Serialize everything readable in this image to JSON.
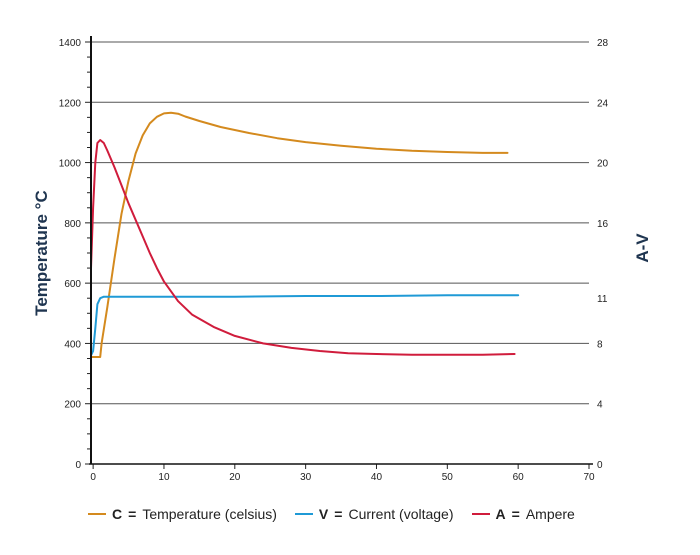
{
  "chart_data": {
    "type": "line",
    "ylabel": "Temperature °C",
    "y2label": "A-V",
    "xlim": [
      0,
      70
    ],
    "ylim": [
      0,
      1400
    ],
    "y2lim": [
      0,
      28
    ],
    "x_ticks": [
      0,
      10,
      20,
      30,
      40,
      50,
      60,
      70
    ],
    "y_ticks": [
      0,
      200,
      400,
      600,
      800,
      1000,
      1200,
      1400
    ],
    "y2_ticks": [
      0,
      4,
      8,
      11,
      16,
      20,
      24,
      28
    ],
    "grid": "horizontal",
    "legend_position": "bottom",
    "legend": [
      {
        "key": "C",
        "equals": "=",
        "label": "Temperature (celsius)",
        "color": "#d48a1e"
      },
      {
        "key": "V",
        "equals": "=",
        "label": "Current (voltage)",
        "color": "#1f9ad6"
      },
      {
        "key": "A",
        "equals": "=",
        "label": "Ampere",
        "color": "#d01c3c"
      }
    ],
    "series": [
      {
        "key": "C",
        "color": "#d48a1e",
        "axis": "left",
        "x": [
          -0.3,
          1.0,
          1.2,
          2,
          3,
          4,
          5,
          6,
          7,
          8,
          9,
          10,
          11,
          12,
          13,
          15,
          18,
          22,
          26,
          30,
          35,
          40,
          45,
          50,
          55,
          58.5
        ],
        "y": [
          355,
          355,
          400,
          520,
          680,
          830,
          940,
          1030,
          1090,
          1130,
          1152,
          1163,
          1165,
          1162,
          1153,
          1138,
          1118,
          1098,
          1081,
          1068,
          1056,
          1046,
          1039,
          1035,
          1032,
          1032
        ]
      },
      {
        "key": "V",
        "color": "#1f9ad6",
        "axis": "right",
        "x": [
          -0.3,
          0.0,
          0.3,
          0.6,
          1.0,
          1.5,
          3,
          10,
          20,
          30,
          40,
          50,
          60
        ],
        "y": [
          7.2,
          7.5,
          9.0,
          10.6,
          11.0,
          11.1,
          11.1,
          11.1,
          11.1,
          11.15,
          11.15,
          11.2,
          11.2
        ]
      },
      {
        "key": "A",
        "color": "#d01c3c",
        "axis": "right",
        "x": [
          -0.3,
          0.0,
          0.3,
          0.6,
          1.0,
          1.5,
          2,
          3,
          4,
          5,
          6,
          7,
          8,
          9,
          10,
          12,
          14,
          17,
          20,
          24,
          28,
          32,
          36,
          40,
          45,
          50,
          55,
          59.5
        ],
        "y": [
          13,
          17,
          20,
          21.3,
          21.5,
          21.3,
          20.8,
          19.7,
          18.5,
          17.3,
          16.2,
          15.1,
          14.0,
          13.0,
          12.1,
          10.8,
          9.9,
          9.1,
          8.5,
          8.0,
          7.7,
          7.5,
          7.35,
          7.3,
          7.25,
          7.25,
          7.25,
          7.3
        ]
      }
    ]
  }
}
